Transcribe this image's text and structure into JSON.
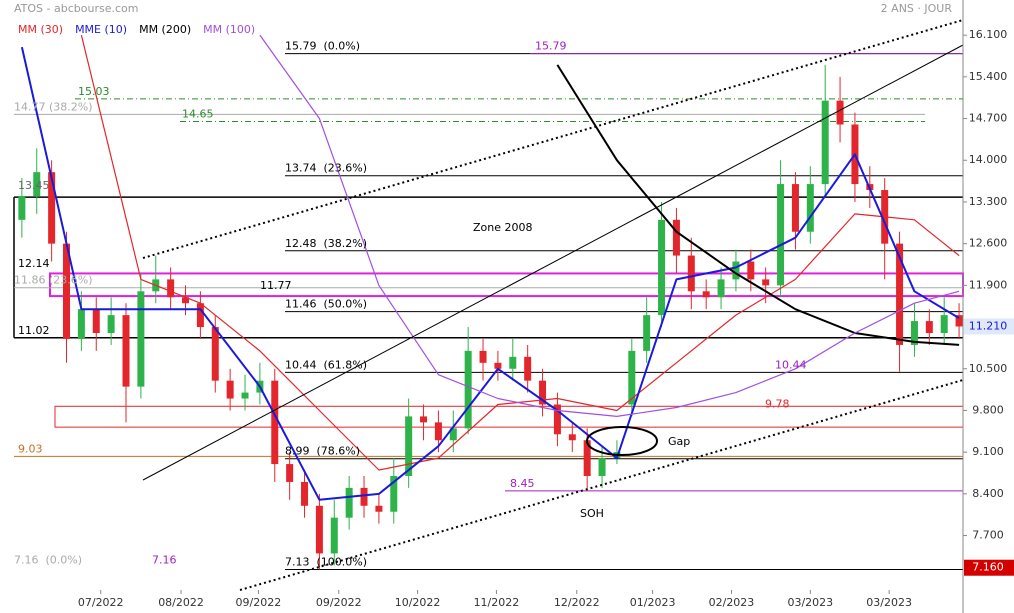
{
  "chart_data": {
    "type": "candlestick",
    "title": "ATOS - abcbourse.com",
    "subtitle": "2 ANS · JOUR",
    "xlim": [
      -1,
      63.6
    ],
    "ylim": [
      6.4,
      16.69
    ],
    "xticks": [
      {
        "value": 5.3,
        "label": "07/2022"
      },
      {
        "value": 10.7,
        "label": "08/2022"
      },
      {
        "value": 15.9,
        "label": "09/2022"
      },
      {
        "value": 21.3,
        "label": "09/2022"
      },
      {
        "value": 26.6,
        "label": "10/2022"
      },
      {
        "value": 31.9,
        "label": "11/2022"
      },
      {
        "value": 37.3,
        "label": "12/2022"
      },
      {
        "value": 42.4,
        "label": "01/2023"
      },
      {
        "value": 47.7,
        "label": "02/2023"
      },
      {
        "value": 53.0,
        "label": "03/2023"
      },
      {
        "value": 58.3,
        "label": "03/2023"
      }
    ],
    "yticks": [
      {
        "value": 16.1,
        "label": "16.100"
      },
      {
        "value": 15.4,
        "label": "15.400"
      },
      {
        "value": 14.7,
        "label": "14.700"
      },
      {
        "value": 14.0,
        "label": "14.000"
      },
      {
        "value": 13.3,
        "label": "13.300"
      },
      {
        "value": 12.6,
        "label": "12.600"
      },
      {
        "value": 11.9,
        "label": "11.900"
      },
      {
        "value": 10.5,
        "label": "10.500"
      },
      {
        "value": 9.8,
        "label": "9.800"
      },
      {
        "value": 9.1,
        "label": "9.100"
      },
      {
        "value": 8.4,
        "label": "8.400"
      },
      {
        "value": 7.7,
        "label": "7.700"
      }
    ],
    "up_color": "#2db34a",
    "down_color": "#e3262b",
    "open": [
      13.0,
      13.4,
      13.8,
      12.6,
      11.0,
      11.5,
      11.1,
      11.4,
      10.2,
      11.8,
      12.0,
      11.7,
      11.6,
      11.2,
      10.3,
      10.0,
      10.1,
      10.3,
      8.9,
      8.6,
      8.2,
      7.4,
      8.0,
      8.5,
      8.2,
      8.1,
      8.7,
      9.7,
      9.6,
      9.3,
      9.5,
      10.8,
      10.6,
      10.5,
      10.7,
      10.3,
      9.9,
      9.4,
      9.3,
      8.7,
      9.0,
      9.9,
      10.8,
      11.4,
      13.0,
      12.4,
      11.8,
      11.7,
      12.0,
      12.3,
      12.0,
      11.9,
      13.6,
      12.8,
      13.6,
      15.0,
      14.6,
      13.6,
      13.5,
      12.6,
      10.9,
      11.3,
      11.1,
      11.4
    ],
    "high": [
      13.7,
      14.2,
      14.0,
      12.8,
      11.8,
      11.7,
      11.7,
      11.6,
      12.1,
      12.4,
      12.2,
      11.9,
      11.8,
      11.4,
      10.5,
      10.4,
      10.6,
      10.5,
      9.1,
      8.8,
      8.4,
      8.3,
      8.7,
      8.7,
      8.4,
      9.0,
      10.0,
      9.9,
      9.8,
      9.8,
      11.2,
      11.0,
      10.8,
      11.0,
      10.9,
      10.5,
      10.1,
      9.6,
      9.5,
      9.2,
      9.3,
      11.0,
      11.7,
      13.3,
      13.2,
      12.7,
      12.0,
      12.2,
      12.5,
      12.5,
      12.2,
      14.0,
      13.8,
      13.9,
      15.6,
      15.4,
      14.8,
      13.9,
      13.7,
      12.8,
      11.6,
      11.5,
      11.7,
      11.6
    ],
    "low": [
      12.7,
      13.1,
      12.3,
      10.6,
      10.8,
      10.8,
      10.9,
      9.6,
      10.0,
      11.6,
      11.5,
      11.4,
      11.0,
      10.1,
      9.8,
      9.8,
      9.9,
      8.6,
      8.3,
      8.0,
      7.13,
      7.2,
      7.8,
      8.0,
      7.9,
      7.9,
      8.5,
      9.3,
      9.1,
      9.1,
      9.4,
      10.3,
      10.3,
      10.3,
      10.1,
      9.7,
      9.2,
      9.1,
      8.45,
      8.5,
      8.9,
      9.7,
      10.6,
      11.2,
      12.1,
      11.5,
      11.5,
      11.5,
      11.8,
      11.8,
      11.6,
      11.7,
      12.5,
      12.6,
      13.4,
      14.3,
      13.3,
      13.2,
      12.0,
      10.45,
      10.7,
      10.9,
      10.9,
      11.0
    ],
    "close": [
      13.4,
      13.8,
      12.6,
      11.0,
      11.5,
      11.1,
      11.4,
      10.2,
      11.8,
      12.0,
      11.7,
      11.6,
      11.2,
      10.3,
      10.0,
      10.1,
      10.3,
      8.9,
      8.6,
      8.2,
      7.4,
      8.0,
      8.5,
      8.2,
      8.1,
      8.7,
      9.7,
      9.6,
      9.3,
      9.5,
      10.8,
      10.6,
      10.5,
      10.7,
      10.3,
      9.9,
      9.4,
      9.3,
      8.7,
      9.0,
      9.1,
      10.8,
      11.4,
      13.0,
      12.4,
      11.8,
      11.7,
      12.0,
      12.3,
      12.0,
      11.9,
      13.6,
      12.8,
      13.6,
      15.0,
      14.6,
      13.6,
      13.5,
      12.6,
      10.9,
      11.3,
      11.1,
      11.4,
      11.21
    ],
    "ma_x": [
      0,
      4,
      8,
      12,
      16,
      20,
      24,
      28,
      32,
      36,
      40,
      44,
      48,
      52,
      56,
      60,
      63
    ],
    "series": [
      {
        "name": "MM (30)",
        "color": "#e3262b",
        "values": [
          null,
          16.1,
          12.0,
          11.6,
          10.8,
          9.8,
          8.8,
          9.0,
          9.9,
          10.0,
          9.8,
          10.6,
          11.4,
          12.0,
          13.1,
          13.0,
          12.4
        ]
      },
      {
        "name": "MME (10)",
        "color": "#1a1adc",
        "values": [
          15.9,
          11.5,
          11.5,
          11.5,
          10.2,
          8.3,
          8.4,
          9.2,
          10.5,
          9.8,
          9.0,
          12.0,
          12.2,
          12.7,
          14.1,
          11.8,
          11.35
        ]
      },
      {
        "name": "MM (200)",
        "color": "#000000",
        "values": [
          null,
          null,
          null,
          null,
          null,
          null,
          null,
          null,
          null,
          15.6,
          14.0,
          12.8,
          12.1,
          11.5,
          11.1,
          10.95,
          10.9
        ]
      },
      {
        "name": "MM (100)",
        "color": "#a050e0",
        "values": [
          null,
          null,
          null,
          null,
          16.1,
          14.7,
          11.9,
          10.4,
          10.0,
          9.8,
          9.7,
          9.85,
          10.1,
          10.5,
          11.1,
          11.6,
          11.8
        ]
      }
    ],
    "levels": [
      {
        "value": 15.79,
        "label": "15.79  (0.0%)",
        "color": "#000000",
        "line": true
      },
      {
        "value": 15.79,
        "label": "15.79",
        "color": "#a020c0",
        "line": true
      },
      {
        "value": 15.03,
        "label": "15.03",
        "color": "#2e8b2e",
        "line": true,
        "dash": "dashdot"
      },
      {
        "value": 14.77,
        "label": "14.77 (38.2%)",
        "color": "#aaaaaa",
        "line": true
      },
      {
        "value": 14.65,
        "label": "14.65",
        "color": "#2e8b2e",
        "line": true,
        "dash": "dashdot"
      },
      {
        "value": 13.74,
        "label": "13.74  (23.6%)",
        "color": "#000000",
        "line": true
      },
      {
        "value": 13.45,
        "label": "13.45",
        "color": "#666666",
        "line": false
      },
      {
        "value": 12.48,
        "label": "12.48  (38.2%)",
        "color": "#000000",
        "line": true
      },
      {
        "value": 12.14,
        "label": "12.14",
        "color": "#000000",
        "line": false
      },
      {
        "value": 11.86,
        "label": "11.86 (23.6%)",
        "color": "#aaaaaa",
        "line": true
      },
      {
        "value": 11.77,
        "label": "11.77",
        "color": "#000000",
        "line": false
      },
      {
        "value": 11.46,
        "label": "11.46  (50.0%)",
        "color": "#000000",
        "line": true
      },
      {
        "value": 11.02,
        "label": "11.02",
        "color": "#000000",
        "line": false
      },
      {
        "value": 10.44,
        "label": "10.44  (61.8%)",
        "color": "#000000",
        "line": true
      },
      {
        "value": 10.44,
        "label": "10.44",
        "color": "#a020c0",
        "line": false
      },
      {
        "value": 9.78,
        "label": "9.78",
        "color": "#e3262b",
        "line": false
      },
      {
        "value": 9.03,
        "label": "9.03",
        "color": "#c87020",
        "line": true
      },
      {
        "value": 8.99,
        "label": "8.99  (78.6%)",
        "color": "#000000",
        "line": true
      },
      {
        "value": 8.45,
        "label": "8.45",
        "color": "#a020c0",
        "line": true
      },
      {
        "value": 7.16,
        "label": "7.16  (0.0%)",
        "color": "#aaaaaa",
        "line": false
      },
      {
        "value": 7.16,
        "label": "7.16",
        "color": "#a020c0",
        "line": false
      },
      {
        "value": 7.13,
        "label": "7.13  (100.0%)",
        "color": "#000000",
        "line": true
      }
    ],
    "zones": [
      {
        "label": "Zone 2008",
        "top": 13.38,
        "bottom": 11.02,
        "color": "#000000"
      },
      {
        "top": 12.1,
        "bottom": 11.72,
        "color": "#e020e0"
      },
      {
        "top": 9.87,
        "bottom": 9.52,
        "color": "#e3262b"
      }
    ],
    "annotations": [
      "Gap",
      "SOH"
    ],
    "price_tags": [
      {
        "value": 11.21,
        "label": "11.210",
        "bg": "#dfe9fb",
        "fg": "#1a1adc"
      },
      {
        "value": 7.16,
        "label": "7.160",
        "bg": "#d40000",
        "fg": "#ffffff"
      }
    ]
  }
}
